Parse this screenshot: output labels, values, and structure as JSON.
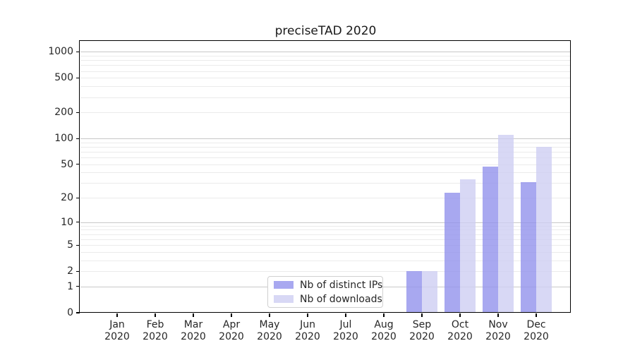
{
  "chart_data": {
    "type": "bar",
    "title": "preciseTAD 2020",
    "categories": [
      "Jan",
      "Feb",
      "Mar",
      "Apr",
      "May",
      "Jun",
      "Jul",
      "Aug",
      "Sep",
      "Oct",
      "Nov",
      "Dec"
    ],
    "x_tick_year": "2020",
    "series": [
      {
        "name": "Nb of distinct IPs",
        "color": "#a8a8f0",
        "values": [
          0,
          0,
          0,
          0,
          0,
          0,
          0,
          0,
          2,
          23,
          47,
          31
        ]
      },
      {
        "name": "Nb of downloads",
        "color": "#d8d8f5",
        "values": [
          0,
          0,
          0,
          0,
          0,
          0,
          0,
          0,
          2,
          33,
          110,
          80
        ]
      }
    ],
    "y_axis": {
      "scale": "log1p",
      "tick_labels": [
        0,
        1,
        2,
        5,
        10,
        20,
        50,
        100,
        200,
        500,
        1000
      ],
      "major_gridlines": [
        1,
        10,
        100,
        1000
      ],
      "minor_gridlines": [
        2,
        3,
        4,
        5,
        6,
        7,
        8,
        9,
        20,
        30,
        40,
        50,
        60,
        70,
        80,
        90,
        200,
        300,
        400,
        500,
        600,
        700,
        800,
        900
      ]
    },
    "xlabel": "",
    "ylabel": "",
    "legend": {
      "position": "lower-center"
    },
    "colors": {
      "grid_major": "#c8c8c8",
      "grid_minor": "#ebebeb",
      "axis": "#000000",
      "text": "#262626",
      "background": "#ffffff"
    }
  }
}
